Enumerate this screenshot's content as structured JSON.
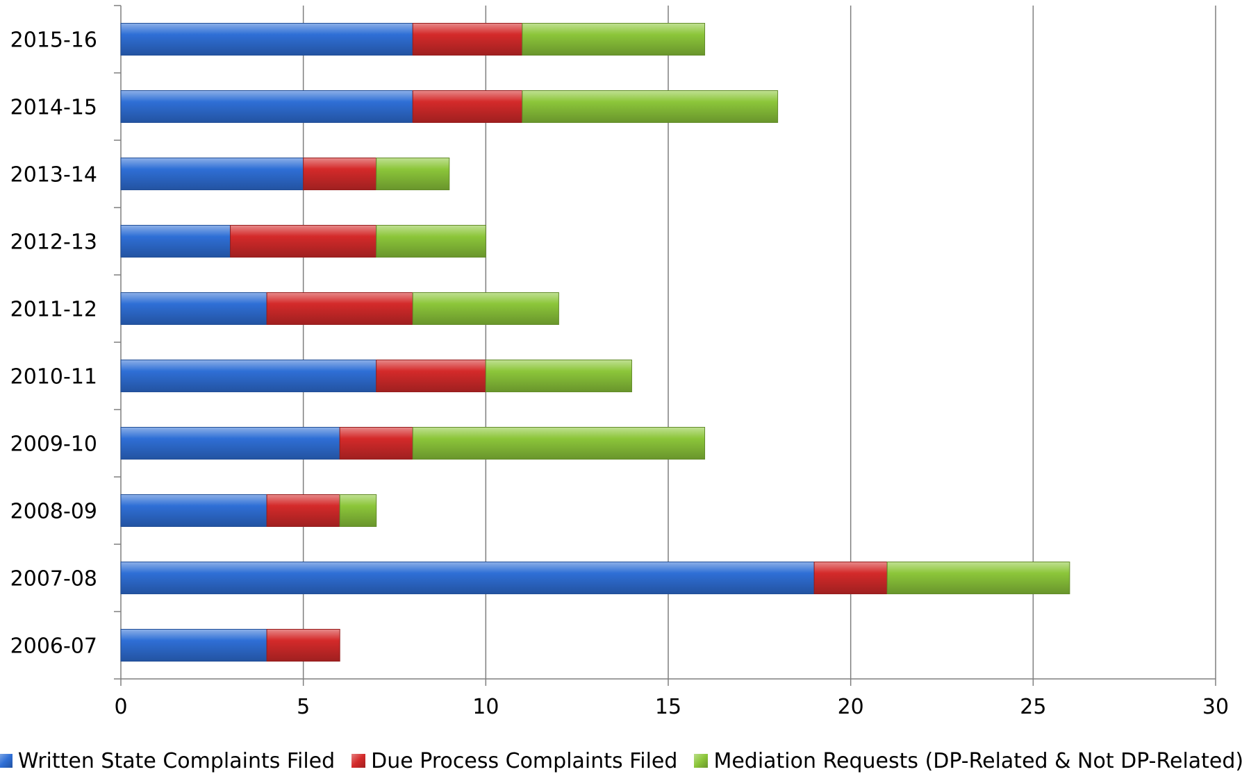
{
  "chart_data": {
    "type": "bar",
    "orientation": "horizontal",
    "stacked": true,
    "categories": [
      "2015-16",
      "2014-15",
      "2013-14",
      "2012-13",
      "2011-12",
      "2010-11",
      "2009-10",
      "2008-09",
      "2007-08",
      "2006-07"
    ],
    "series": [
      {
        "name": "Written State Complaints Filed",
        "color": "#2f6fd6",
        "values": [
          8,
          8,
          5,
          3,
          4,
          7,
          6,
          4,
          19,
          4
        ]
      },
      {
        "name": "Due Process Complaints Filed",
        "color": "#d42a2a",
        "values": [
          3,
          3,
          2,
          4,
          4,
          3,
          2,
          2,
          2,
          2
        ]
      },
      {
        "name": "Mediation Requests (DP-Related & Not DP-Related)",
        "color": "#8cc63a",
        "values": [
          5,
          7,
          2,
          3,
          4,
          4,
          8,
          1,
          5,
          0
        ]
      }
    ],
    "xlim": [
      0,
      30
    ],
    "xticks": [
      "0",
      "5",
      "10",
      "15",
      "20",
      "25",
      "30"
    ],
    "grid": "vertical",
    "legend": "bottom",
    "title": "",
    "xlabel": "",
    "ylabel": ""
  }
}
